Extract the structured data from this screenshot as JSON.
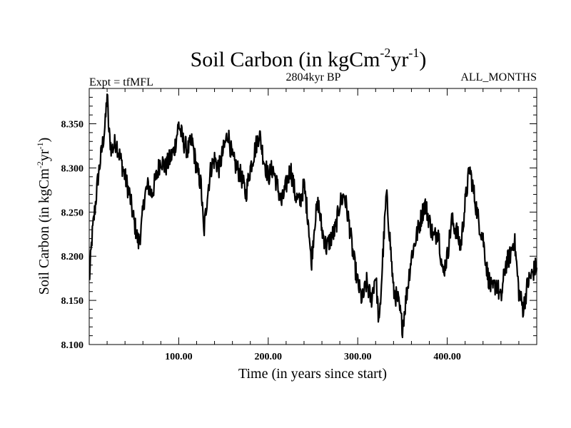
{
  "chart_data": {
    "type": "line",
    "title": {
      "main": "Soil Carbon (in kgCm",
      "sup1": "-2",
      "mid": "yr",
      "sup2": "-1",
      "end": ")"
    },
    "header": {
      "left": "Expt = tfMFL",
      "center": "2804kyr BP",
      "right": "ALL_MONTHS"
    },
    "xlabel": "Time (in years since start)",
    "ylabel": {
      "main": "Soil Carbon (in kgCm",
      "sup1": "-2",
      "mid": "yr",
      "sup2": "-1",
      "end": ")"
    },
    "xlim": [
      0,
      500
    ],
    "ylim": [
      8.1,
      8.39
    ],
    "x_ticks": [
      100,
      200,
      300,
      400
    ],
    "x_tick_labels": [
      "100.00",
      "200.00",
      "300.00",
      "400.00"
    ],
    "y_ticks": [
      8.1,
      8.15,
      8.2,
      8.25,
      8.3,
      8.35
    ],
    "y_tick_labels": [
      "8.100",
      "8.150",
      "8.200",
      "8.250",
      "8.300",
      "8.350"
    ],
    "series": [
      {
        "name": "Soil Carbon",
        "color": "#000000",
        "x": [
          0,
          3,
          6,
          10,
          14,
          18,
          20,
          22,
          25,
          30,
          35,
          40,
          45,
          50,
          55,
          58,
          62,
          66,
          70,
          75,
          80,
          85,
          90,
          95,
          100,
          105,
          110,
          115,
          120,
          125,
          128,
          132,
          136,
          140,
          145,
          150,
          155,
          160,
          165,
          170,
          175,
          180,
          185,
          190,
          195,
          200,
          205,
          210,
          215,
          220,
          225,
          230,
          235,
          240,
          245,
          248,
          252,
          256,
          260,
          265,
          270,
          275,
          280,
          285,
          290,
          295,
          300,
          305,
          310,
          315,
          320,
          324,
          328,
          332,
          336,
          340,
          345,
          350,
          355,
          360,
          365,
          370,
          375,
          380,
          385,
          390,
          395,
          400,
          405,
          410,
          415,
          420,
          425,
          430,
          435,
          440,
          445,
          450,
          455,
          460,
          465,
          470,
          475,
          480,
          485,
          490,
          495,
          500
        ],
        "values": [
          8.17,
          8.22,
          8.25,
          8.29,
          8.32,
          8.35,
          8.385,
          8.34,
          8.32,
          8.33,
          8.31,
          8.29,
          8.27,
          8.24,
          8.215,
          8.23,
          8.27,
          8.28,
          8.27,
          8.29,
          8.31,
          8.3,
          8.31,
          8.32,
          8.35,
          8.33,
          8.32,
          8.33,
          8.3,
          8.28,
          8.225,
          8.27,
          8.3,
          8.31,
          8.3,
          8.32,
          8.34,
          8.31,
          8.3,
          8.29,
          8.27,
          8.3,
          8.32,
          8.34,
          8.31,
          8.29,
          8.3,
          8.28,
          8.26,
          8.28,
          8.3,
          8.27,
          8.26,
          8.28,
          8.24,
          8.19,
          8.24,
          8.26,
          8.23,
          8.21,
          8.22,
          8.23,
          8.26,
          8.27,
          8.24,
          8.2,
          8.17,
          8.15,
          8.17,
          8.15,
          8.18,
          8.12,
          8.2,
          8.27,
          8.22,
          8.16,
          8.15,
          8.12,
          8.16,
          8.2,
          8.22,
          8.24,
          8.26,
          8.24,
          8.22,
          8.23,
          8.18,
          8.2,
          8.24,
          8.23,
          8.21,
          8.26,
          8.3,
          8.27,
          8.24,
          8.22,
          8.18,
          8.16,
          8.17,
          8.15,
          8.19,
          8.2,
          8.22,
          8.16,
          8.14,
          8.17,
          8.18,
          8.19
        ]
      }
    ]
  }
}
